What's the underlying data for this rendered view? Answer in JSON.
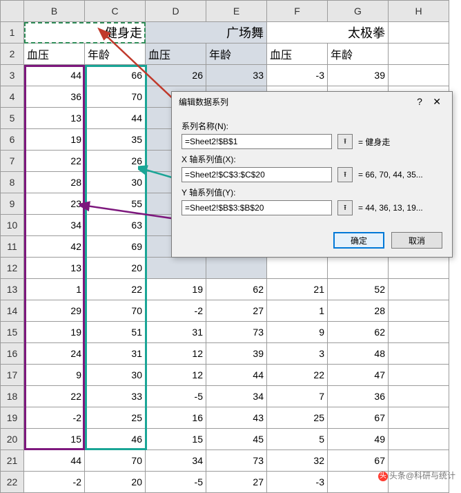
{
  "columns": [
    "",
    "B",
    "C",
    "D",
    "E",
    "F",
    "G",
    "H"
  ],
  "merged_headers": [
    {
      "text": "健身走",
      "span": 2
    },
    {
      "text": "广场舞",
      "span": 2
    },
    {
      "text": "太极拳",
      "span": 2
    }
  ],
  "sub_headers": [
    "血压",
    "年龄",
    "血压",
    "年龄",
    "血压",
    "年龄"
  ],
  "rows": [
    {
      "r": "3",
      "c": [
        "44",
        "66",
        "26",
        "33",
        "-3",
        "39",
        ""
      ]
    },
    {
      "r": "4",
      "c": [
        "36",
        "70",
        "",
        "",
        "",
        "",
        ""
      ]
    },
    {
      "r": "5",
      "c": [
        "13",
        "44",
        "",
        "",
        "",
        "",
        ""
      ]
    },
    {
      "r": "6",
      "c": [
        "19",
        "35",
        "",
        "",
        "",
        "",
        ""
      ]
    },
    {
      "r": "7",
      "c": [
        "22",
        "26",
        "",
        "",
        "",
        "",
        ""
      ]
    },
    {
      "r": "8",
      "c": [
        "28",
        "30",
        "",
        "",
        "",
        "",
        ""
      ]
    },
    {
      "r": "9",
      "c": [
        "23",
        "55",
        "",
        "",
        "",
        "",
        ""
      ]
    },
    {
      "r": "10",
      "c": [
        "34",
        "63",
        "",
        "",
        "",
        "",
        ""
      ]
    },
    {
      "r": "11",
      "c": [
        "42",
        "69",
        "",
        "",
        "",
        "",
        ""
      ]
    },
    {
      "r": "12",
      "c": [
        "13",
        "20",
        "",
        "",
        "",
        "",
        ""
      ]
    },
    {
      "r": "13",
      "c": [
        "1",
        "22",
        "19",
        "62",
        "21",
        "52",
        ""
      ]
    },
    {
      "r": "14",
      "c": [
        "29",
        "70",
        "-2",
        "27",
        "1",
        "28",
        ""
      ]
    },
    {
      "r": "15",
      "c": [
        "19",
        "51",
        "31",
        "73",
        "9",
        "62",
        ""
      ]
    },
    {
      "r": "16",
      "c": [
        "24",
        "31",
        "12",
        "39",
        "3",
        "48",
        ""
      ]
    },
    {
      "r": "17",
      "c": [
        "9",
        "30",
        "12",
        "44",
        "22",
        "47",
        ""
      ]
    },
    {
      "r": "18",
      "c": [
        "22",
        "33",
        "-5",
        "34",
        "7",
        "36",
        ""
      ]
    },
    {
      "r": "19",
      "c": [
        "-2",
        "25",
        "16",
        "43",
        "25",
        "67",
        ""
      ]
    },
    {
      "r": "20",
      "c": [
        "15",
        "46",
        "15",
        "45",
        "5",
        "49",
        ""
      ]
    },
    {
      "r": "21",
      "c": [
        "44",
        "70",
        "34",
        "73",
        "32",
        "67",
        ""
      ]
    },
    {
      "r": "22",
      "c": [
        "-2",
        "20",
        "-5",
        "27",
        "-3",
        "",
        ""
      ]
    }
  ],
  "dialog": {
    "title": "编辑数据系列",
    "labels": {
      "name": "系列名称(N):",
      "x": "X 轴系列值(X):",
      "y": "Y 轴系列值(Y):"
    },
    "fields": {
      "name": "=Sheet2!$B$1",
      "x": "=Sheet2!$C$3:$C$20",
      "y": "=Sheet2!$B$3:$B$20"
    },
    "previews": {
      "name": "= 健身走",
      "x": "= 66, 70, 44, 35...",
      "y": "= 44, 36, 13, 19..."
    },
    "buttons": {
      "ok": "确定",
      "cancel": "取消"
    },
    "help": "?",
    "close": "✕",
    "refglyph": "⭱"
  },
  "watermark": "头条@科研与统计",
  "colors": {
    "sel_green": "#2e8b57",
    "sel_teal": "#1aa596",
    "sel_purple": "#7d187d",
    "arrow_red": "#c0392b"
  }
}
